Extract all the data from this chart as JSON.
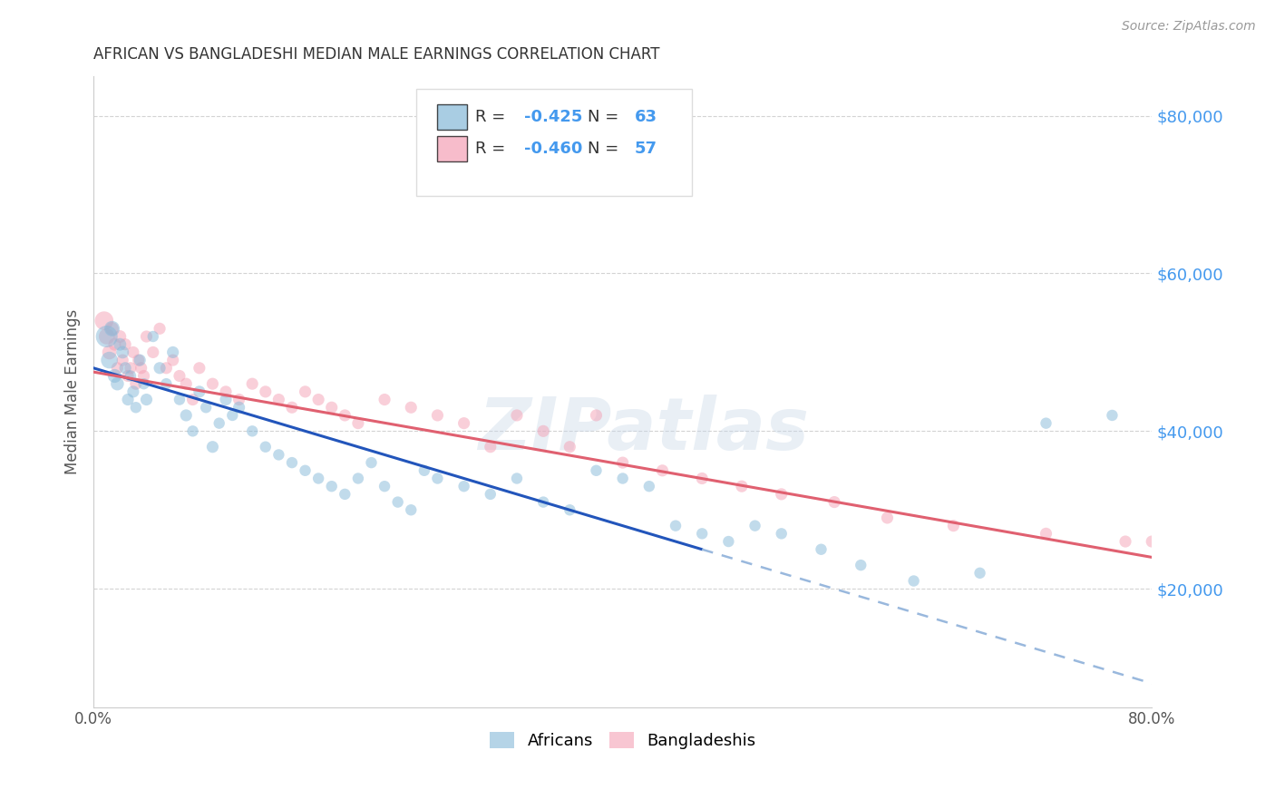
{
  "title": "AFRICAN VS BANGLADESHI MEDIAN MALE EARNINGS CORRELATION CHART",
  "source": "Source: ZipAtlas.com",
  "ylabel": "Median Male Earnings",
  "xmin": 0.0,
  "xmax": 80.0,
  "ymin": 5000,
  "ymax": 85000,
  "yticks": [
    20000,
    40000,
    60000,
    80000
  ],
  "ytick_labels": [
    "$20,000",
    "$40,000",
    "$60,000",
    "$80,000"
  ],
  "africans_color": "#85b8d8",
  "bangladeshis_color": "#f4a0b5",
  "line_african_color": "#2255bb",
  "line_bangladeshi_color": "#e06070",
  "line_african_dash_color": "#99b8dd",
  "watermark": "ZIPatlas",
  "african_line_x0": 0,
  "african_line_y0": 48000,
  "african_line_x1": 46,
  "african_line_y1": 25000,
  "african_dash_x0": 46,
  "african_dash_y0": 25000,
  "african_dash_x1": 80,
  "african_dash_y1": 8000,
  "bangla_line_x0": 0,
  "bangla_line_y0": 47500,
  "bangla_line_x1": 80,
  "bangla_line_y1": 24000,
  "africans_x": [
    1.0,
    1.2,
    1.4,
    1.6,
    1.8,
    2.0,
    2.2,
    2.4,
    2.6,
    2.8,
    3.0,
    3.2,
    3.5,
    3.8,
    4.0,
    4.5,
    5.0,
    5.5,
    6.0,
    6.5,
    7.0,
    7.5,
    8.0,
    8.5,
    9.0,
    9.5,
    10.0,
    10.5,
    11.0,
    12.0,
    13.0,
    14.0,
    15.0,
    16.0,
    17.0,
    18.0,
    19.0,
    20.0,
    21.0,
    22.0,
    23.0,
    24.0,
    25.0,
    26.0,
    28.0,
    30.0,
    32.0,
    34.0,
    36.0,
    38.0,
    40.0,
    42.0,
    44.0,
    46.0,
    48.0,
    50.0,
    52.0,
    55.0,
    58.0,
    62.0,
    67.0,
    72.0,
    77.0
  ],
  "africans_y": [
    52000,
    49000,
    53000,
    47000,
    46000,
    51000,
    50000,
    48000,
    44000,
    47000,
    45000,
    43000,
    49000,
    46000,
    44000,
    52000,
    48000,
    46000,
    50000,
    44000,
    42000,
    40000,
    45000,
    43000,
    38000,
    41000,
    44000,
    42000,
    43000,
    40000,
    38000,
    37000,
    36000,
    35000,
    34000,
    33000,
    32000,
    34000,
    36000,
    33000,
    31000,
    30000,
    35000,
    34000,
    33000,
    32000,
    34000,
    31000,
    30000,
    35000,
    34000,
    33000,
    28000,
    27000,
    26000,
    28000,
    27000,
    25000,
    23000,
    21000,
    22000,
    41000,
    42000
  ],
  "africans_size": [
    300,
    180,
    150,
    120,
    110,
    100,
    100,
    90,
    90,
    80,
    90,
    80,
    90,
    80,
    90,
    80,
    90,
    80,
    90,
    80,
    90,
    80,
    90,
    80,
    90,
    80,
    90,
    80,
    90,
    80,
    80,
    80,
    80,
    80,
    80,
    80,
    80,
    80,
    80,
    80,
    80,
    80,
    80,
    80,
    80,
    80,
    80,
    80,
    80,
    80,
    80,
    80,
    80,
    80,
    80,
    80,
    80,
    80,
    80,
    80,
    80,
    80,
    80
  ],
  "bangladeshis_x": [
    0.8,
    1.0,
    1.2,
    1.4,
    1.6,
    1.8,
    2.0,
    2.2,
    2.4,
    2.6,
    2.8,
    3.0,
    3.2,
    3.4,
    3.6,
    3.8,
    4.0,
    4.5,
    5.0,
    5.5,
    6.0,
    6.5,
    7.0,
    7.5,
    8.0,
    9.0,
    10.0,
    11.0,
    12.0,
    13.0,
    14.0,
    15.0,
    16.0,
    17.0,
    18.0,
    19.0,
    20.0,
    22.0,
    24.0,
    26.0,
    28.0,
    30.0,
    32.0,
    34.0,
    36.0,
    38.0,
    40.0,
    43.0,
    46.0,
    49.0,
    52.0,
    56.0,
    60.0,
    65.0,
    72.0,
    78.0,
    80.0
  ],
  "bangladeshis_y": [
    54000,
    52000,
    50000,
    53000,
    51000,
    48000,
    52000,
    49000,
    51000,
    47000,
    48000,
    50000,
    46000,
    49000,
    48000,
    47000,
    52000,
    50000,
    53000,
    48000,
    49000,
    47000,
    46000,
    44000,
    48000,
    46000,
    45000,
    44000,
    46000,
    45000,
    44000,
    43000,
    45000,
    44000,
    43000,
    42000,
    41000,
    44000,
    43000,
    42000,
    41000,
    38000,
    42000,
    40000,
    38000,
    42000,
    36000,
    35000,
    34000,
    33000,
    32000,
    31000,
    29000,
    28000,
    27000,
    26000,
    26000
  ],
  "bangladeshis_size": [
    220,
    160,
    130,
    110,
    100,
    90,
    100,
    90,
    90,
    90,
    90,
    90,
    90,
    90,
    90,
    90,
    90,
    90,
    90,
    90,
    90,
    90,
    90,
    90,
    90,
    90,
    90,
    90,
    90,
    90,
    90,
    90,
    90,
    90,
    90,
    90,
    90,
    90,
    90,
    90,
    90,
    90,
    90,
    90,
    90,
    90,
    90,
    90,
    90,
    90,
    90,
    90,
    90,
    90,
    90,
    90,
    90
  ],
  "grid_color": "#c8c8c8",
  "background_color": "#ffffff",
  "title_color": "#333333",
  "axis_label_color": "#555555",
  "ytick_color": "#4499ee",
  "legend_text_color": "#4499ee"
}
